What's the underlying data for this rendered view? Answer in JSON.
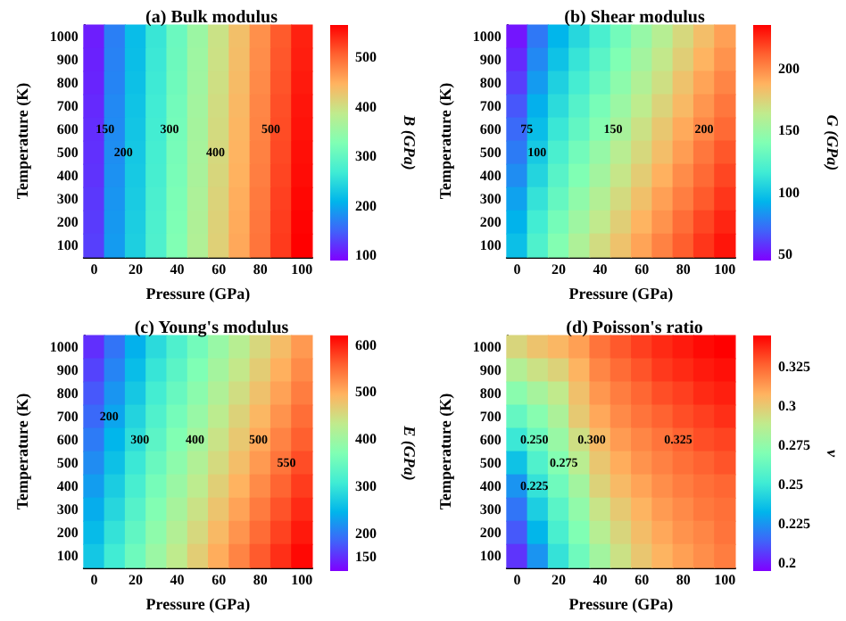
{
  "chart_data": [
    {
      "type": "heatmap",
      "title": "(a) Bulk modulus",
      "xlabel": "Pressure (GPa)",
      "ylabel": "Temperature (K)",
      "clabel": "B (GPa)",
      "categories": [
        "0",
        null,
        "20",
        null,
        "40",
        null,
        "60",
        null,
        "80",
        null,
        "100"
      ],
      "y_categories": [
        "1000",
        "900",
        "800",
        "700",
        "600",
        "500",
        "400",
        "300",
        "200",
        "100"
      ],
      "cells": [
        [
          108,
          170,
          217,
          262,
          308,
          353,
          396,
          434,
          472,
          510,
          545
        ],
        [
          110,
          172,
          219,
          264,
          310,
          355,
          398,
          436,
          474,
          512,
          547
        ],
        [
          112,
          174,
          221,
          266,
          312,
          357,
          400,
          438,
          476,
          514,
          549
        ],
        [
          115,
          177,
          224,
          269,
          315,
          360,
          403,
          441,
          479,
          517,
          552
        ],
        [
          117,
          179,
          226,
          271,
          317,
          362,
          405,
          443,
          481,
          519,
          554
        ],
        [
          119,
          181,
          228,
          273,
          319,
          364,
          407,
          445,
          483,
          521,
          556
        ],
        [
          121,
          183,
          230,
          275,
          321,
          366,
          409,
          447,
          485,
          523,
          558
        ],
        [
          124,
          186,
          233,
          278,
          324,
          369,
          412,
          450,
          488,
          526,
          561
        ],
        [
          126,
          188,
          235,
          280,
          326,
          371,
          414,
          452,
          490,
          528,
          563
        ],
        [
          128,
          190,
          237,
          282,
          328,
          373,
          416,
          454,
          492,
          530,
          565
        ]
      ],
      "clim": [
        90,
        565
      ],
      "cticks": [
        100,
        200,
        300,
        400,
        500
      ],
      "annotations": [
        "150",
        "200",
        "300",
        "400",
        "500"
      ]
    },
    {
      "type": "heatmap",
      "title": "(b) Shear modulus",
      "xlabel": "Pressure (GPa)",
      "ylabel": "Temperature (K)",
      "clabel": "G (GPa)",
      "categories": [
        "0",
        null,
        "20",
        null,
        "40",
        null,
        "60",
        null,
        "80",
        null,
        "100"
      ],
      "y_categories": [
        "1000",
        "900",
        "800",
        "700",
        "600",
        "500",
        "400",
        "300",
        "200",
        "100"
      ],
      "cells": [
        [
          50,
          75,
          93,
          107,
          120,
          135,
          148,
          160,
          172,
          183,
          193
        ],
        [
          55,
          80,
          98,
          113,
          126,
          140,
          153,
          165,
          176,
          187,
          197
        ],
        [
          60,
          85,
          104,
          118,
          131,
          145,
          158,
          169,
          181,
          192,
          201
        ],
        [
          66,
          91,
          109,
          124,
          137,
          150,
          163,
          174,
          185,
          196,
          205
        ],
        [
          71,
          96,
          114,
          129,
          142,
          155,
          168,
          179,
          190,
          200,
          209
        ],
        [
          76,
          101,
          120,
          135,
          148,
          161,
          172,
          183,
          194,
          205,
          214
        ],
        [
          81,
          106,
          125,
          140,
          153,
          166,
          177,
          188,
          199,
          209,
          218
        ],
        [
          87,
          112,
          130,
          146,
          159,
          171,
          182,
          193,
          203,
          213,
          222
        ],
        [
          92,
          117,
          136,
          151,
          164,
          176,
          187,
          197,
          208,
          218,
          226
        ],
        [
          97,
          122,
          141,
          157,
          170,
          181,
          192,
          202,
          212,
          222,
          230
        ]
      ],
      "clim": [
        45,
        235
      ],
      "cticks": [
        50,
        100,
        150,
        200
      ],
      "annotations": [
        "75",
        "100",
        "150",
        "200"
      ]
    },
    {
      "type": "heatmap",
      "title": "(c) Young's modulus",
      "xlabel": "Pressure (GPa)",
      "ylabel": "Temperature (K)",
      "clabel": "E (GPa)",
      "categories": [
        "0",
        null,
        "20",
        null,
        "40",
        null,
        "60",
        null,
        "80",
        null,
        "100"
      ],
      "y_categories": [
        "1000",
        "900",
        "800",
        "700",
        "600",
        "500",
        "400",
        "300",
        "200",
        "100"
      ],
      "cells": [
        [
          150,
          196,
          242,
          287,
          322,
          357,
          393,
          424,
          455,
          485,
          515
        ],
        [
          163,
          208,
          254,
          299,
          334,
          369,
          405,
          436,
          467,
          497,
          526
        ],
        [
          176,
          221,
          266,
          311,
          347,
          381,
          417,
          448,
          479,
          508,
          537
        ],
        [
          188,
          233,
          279,
          323,
          359,
          393,
          429,
          460,
          491,
          520,
          548
        ],
        [
          201,
          246,
          291,
          335,
          371,
          405,
          441,
          472,
          503,
          532,
          559
        ],
        [
          214,
          258,
          303,
          348,
          383,
          418,
          452,
          483,
          514,
          543,
          571
        ],
        [
          227,
          271,
          315,
          360,
          395,
          430,
          464,
          495,
          526,
          555,
          582
        ],
        [
          239,
          283,
          328,
          372,
          408,
          442,
          476,
          507,
          538,
          567,
          593
        ],
        [
          252,
          296,
          340,
          384,
          420,
          454,
          488,
          519,
          550,
          578,
          604
        ],
        [
          265,
          308,
          352,
          396,
          432,
          466,
          500,
          531,
          562,
          590,
          615
        ]
      ],
      "clim": [
        120,
        620
      ],
      "cticks": [
        150,
        200,
        300,
        400,
        500,
        600
      ],
      "annotations": [
        "200",
        "300",
        "400",
        "500",
        "550"
      ]
    },
    {
      "type": "heatmap",
      "title": "(d) Poisson's ratio",
      "xlabel": "Pressure (GPa)",
      "ylabel": "Temperature (K)",
      "clabel": "ν",
      "categories": [
        "0",
        null,
        "20",
        null,
        "40",
        null,
        "60",
        null,
        "80",
        null,
        "100"
      ],
      "y_categories": [
        "1000",
        "900",
        "800",
        "700",
        "600",
        "500",
        "400",
        "300",
        "200",
        "100"
      ],
      "cells": [
        [
          0.296,
          0.302,
          0.306,
          0.312,
          0.322,
          0.328,
          0.333,
          0.337,
          0.34,
          0.343,
          0.345
        ],
        [
          0.285,
          0.292,
          0.297,
          0.307,
          0.318,
          0.324,
          0.329,
          0.334,
          0.337,
          0.34,
          0.342
        ],
        [
          0.273,
          0.281,
          0.289,
          0.303,
          0.314,
          0.32,
          0.325,
          0.33,
          0.333,
          0.337,
          0.339
        ],
        [
          0.262,
          0.272,
          0.283,
          0.3,
          0.31,
          0.317,
          0.322,
          0.326,
          0.33,
          0.333,
          0.336
        ],
        [
          0.25,
          0.264,
          0.277,
          0.293,
          0.305,
          0.313,
          0.318,
          0.322,
          0.326,
          0.33,
          0.332
        ],
        [
          0.237,
          0.256,
          0.271,
          0.287,
          0.301,
          0.309,
          0.315,
          0.319,
          0.323,
          0.326,
          0.329
        ],
        [
          0.225,
          0.248,
          0.265,
          0.28,
          0.297,
          0.305,
          0.311,
          0.316,
          0.32,
          0.323,
          0.325
        ],
        [
          0.218,
          0.241,
          0.259,
          0.275,
          0.291,
          0.3,
          0.307,
          0.313,
          0.317,
          0.321,
          0.323
        ],
        [
          0.212,
          0.233,
          0.254,
          0.27,
          0.286,
          0.296,
          0.304,
          0.31,
          0.315,
          0.318,
          0.322
        ],
        [
          0.205,
          0.225,
          0.248,
          0.265,
          0.28,
          0.292,
          0.301,
          0.307,
          0.312,
          0.316,
          0.32
        ]
      ],
      "clim": [
        0.195,
        0.345
      ],
      "cticks": [
        0.2,
        0.225,
        0.25,
        0.275,
        0.3,
        0.325
      ],
      "annotations": [
        "0.225",
        "0.250",
        "0.275",
        "0.300",
        "0.325"
      ]
    }
  ]
}
